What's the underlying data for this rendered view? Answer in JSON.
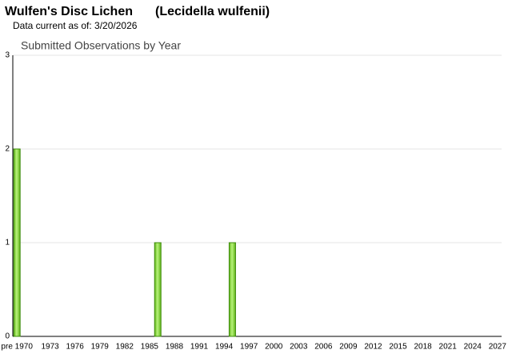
{
  "header": {
    "title": "Wulfen's Disc Lichen",
    "scientific_name": "(Lecidella wulfenii)",
    "subtitle": "Data current as of: 3/20/2026"
  },
  "chart_data": {
    "type": "bar",
    "title": "Submitted Observations by Year",
    "categories": [
      "pre 1970",
      null,
      null,
      null,
      "1973",
      null,
      null,
      "1976",
      null,
      null,
      "1979",
      null,
      null,
      "1982",
      null,
      null,
      "1985",
      null,
      null,
      "1988",
      null,
      null,
      "1991",
      null,
      null,
      "1994",
      null,
      null,
      "1997",
      null,
      null,
      "2000",
      null,
      null,
      "2003",
      null,
      null,
      "2006",
      null,
      null,
      "2009",
      null,
      null,
      "2012",
      null,
      null,
      "2015",
      null,
      null,
      "2018",
      null,
      null,
      "2021",
      null,
      null,
      "2024",
      null,
      null,
      "2027"
    ],
    "values": [
      2,
      0,
      0,
      0,
      0,
      0,
      0,
      0,
      0,
      0,
      0,
      0,
      0,
      0,
      0,
      0,
      0,
      1,
      0,
      0,
      0,
      0,
      0,
      0,
      0,
      0,
      1,
      0,
      0,
      0,
      0,
      0,
      0,
      0,
      0,
      0,
      0,
      0,
      0,
      0,
      0,
      0,
      0,
      0,
      0,
      0,
      0,
      0,
      0,
      0,
      0,
      0,
      0,
      0,
      0,
      0,
      0,
      0,
      0
    ],
    "color": "#7ed321",
    "ylim": [
      0,
      3
    ],
    "yticks": [
      0,
      1,
      2,
      3
    ],
    "grid": true
  }
}
